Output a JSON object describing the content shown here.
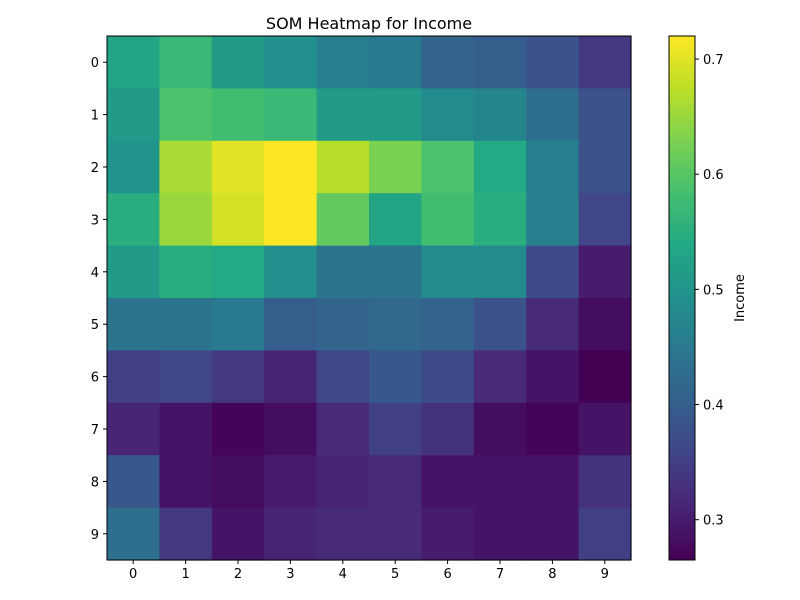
{
  "chart_data": {
    "type": "heatmap",
    "title": "SOM Heatmap for Income",
    "xlabel": "",
    "ylabel": "",
    "x_categories": [
      "0",
      "1",
      "2",
      "3",
      "4",
      "5",
      "6",
      "7",
      "8",
      "9"
    ],
    "y_categories": [
      "0",
      "1",
      "2",
      "3",
      "4",
      "5",
      "6",
      "7",
      "8",
      "9"
    ],
    "values": [
      [
        0.53,
        0.57,
        0.51,
        0.49,
        0.46,
        0.45,
        0.41,
        0.4,
        0.38,
        0.34
      ],
      [
        0.51,
        0.59,
        0.58,
        0.57,
        0.51,
        0.51,
        0.48,
        0.47,
        0.43,
        0.38
      ],
      [
        0.5,
        0.66,
        0.7,
        0.72,
        0.67,
        0.63,
        0.59,
        0.54,
        0.46,
        0.38
      ],
      [
        0.55,
        0.65,
        0.69,
        0.72,
        0.61,
        0.53,
        0.58,
        0.55,
        0.46,
        0.36
      ],
      [
        0.51,
        0.55,
        0.54,
        0.49,
        0.44,
        0.44,
        0.48,
        0.48,
        0.37,
        0.3
      ],
      [
        0.44,
        0.44,
        0.45,
        0.4,
        0.41,
        0.42,
        0.41,
        0.38,
        0.32,
        0.28
      ],
      [
        0.35,
        0.36,
        0.34,
        0.31,
        0.36,
        0.39,
        0.37,
        0.32,
        0.29,
        0.26
      ],
      [
        0.31,
        0.29,
        0.27,
        0.28,
        0.32,
        0.35,
        0.33,
        0.28,
        0.27,
        0.29
      ],
      [
        0.39,
        0.29,
        0.28,
        0.3,
        0.31,
        0.32,
        0.29,
        0.29,
        0.29,
        0.33
      ],
      [
        0.43,
        0.34,
        0.29,
        0.31,
        0.32,
        0.32,
        0.3,
        0.29,
        0.29,
        0.35
      ]
    ],
    "colorbar": {
      "label": "Income",
      "vmin": 0.265,
      "vmax": 0.72,
      "ticks": [
        0.3,
        0.4,
        0.5,
        0.6,
        0.7
      ],
      "tick_labels": [
        "0.3",
        "0.4",
        "0.5",
        "0.6",
        "0.7"
      ],
      "colormap": "viridis"
    }
  }
}
